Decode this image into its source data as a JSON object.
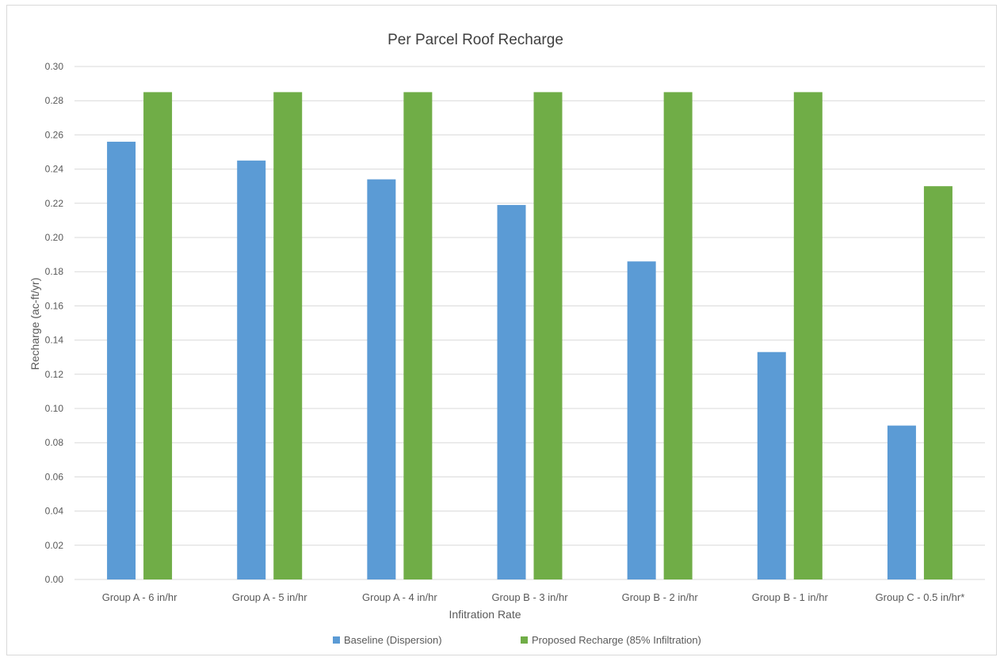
{
  "chart_data": {
    "type": "bar",
    "title": "Per Parcel Roof Recharge",
    "xlabel": "Infitration Rate",
    "ylabel": "Recharge (ac-ft/yr)",
    "ylim": [
      0,
      0.3
    ],
    "yticks": [
      "0.00",
      "0.02",
      "0.04",
      "0.06",
      "0.08",
      "0.10",
      "0.12",
      "0.14",
      "0.16",
      "0.18",
      "0.20",
      "0.22",
      "0.24",
      "0.26",
      "0.28",
      "0.30"
    ],
    "grid": true,
    "legend_position": "bottom",
    "categories": [
      "Group A - 6 in/hr",
      "Group A - 5 in/hr",
      "Group A - 4 in/hr",
      "Group B - 3 in/hr",
      "Group B - 2 in/hr",
      "Group B - 1 in/hr",
      "Group C - 0.5 in/hr*"
    ],
    "series": [
      {
        "name": "Baseline (Dispersion)",
        "color": "#5b9bd5",
        "values": [
          0.256,
          0.245,
          0.234,
          0.219,
          0.186,
          0.133,
          0.09
        ]
      },
      {
        "name": "Proposed Recharge (85% Infiltration)",
        "color": "#70ad47",
        "values": [
          0.285,
          0.285,
          0.285,
          0.285,
          0.285,
          0.285,
          0.23
        ]
      }
    ]
  },
  "style": {
    "grid_color": "#d9d9d9",
    "text_color": "#595959",
    "title_color": "#404040"
  }
}
